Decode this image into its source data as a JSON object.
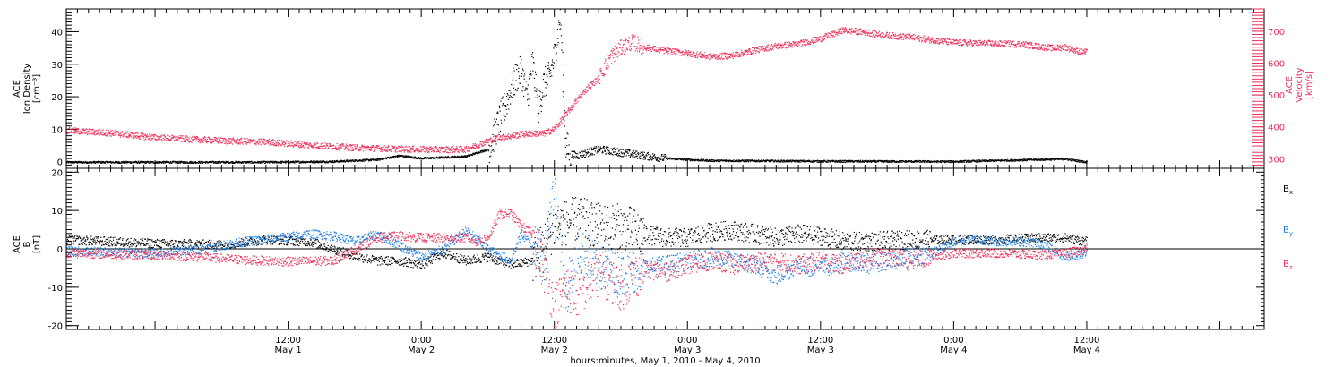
{
  "figure": {
    "xlabel": "hours:minutes, May  1, 2010 - May  4, 2010",
    "x_range_hours": [
      -8,
      100
    ],
    "x_ticks": [
      {
        "hour": 12,
        "time": "12:00",
        "date": "May 1"
      },
      {
        "hour": 24,
        "time": "0:00",
        "date": "May 2"
      },
      {
        "hour": 36,
        "time": "12:00",
        "date": "May 2"
      },
      {
        "hour": 48,
        "time": "0:00",
        "date": "May 3"
      },
      {
        "hour": 60,
        "time": "12:00",
        "date": "May 3"
      },
      {
        "hour": 72,
        "time": "0:00",
        "date": "May 4"
      },
      {
        "hour": 84,
        "time": "12:00",
        "date": "May 4"
      }
    ],
    "colors": {
      "black": "#000000",
      "red": "#e8305a",
      "blue": "#1e7fe0",
      "pink_axis": "#e8305a"
    }
  },
  "chart_data": [
    {
      "type": "scatter",
      "title": "",
      "ylabel_lines": [
        "ACE",
        "Ion Density"
      ],
      "yunit": "[cm⁻³]",
      "ylim": [
        -2,
        47
      ],
      "yticks": [
        0,
        10,
        20,
        30,
        40
      ],
      "y2label_lines": [
        "ACE",
        "Velocity"
      ],
      "y2unit": "[km/s]",
      "y2lim": [
        270,
        770
      ],
      "y2ticks": [
        300,
        400,
        500,
        600,
        700
      ],
      "series": [
        {
          "name": "",
          "axis": "left",
          "color": "#000000",
          "points": [
            [
              -8,
              0
            ],
            [
              10,
              0
            ],
            [
              16,
              0.2
            ],
            [
              20,
              0.8
            ],
            [
              22,
              2
            ],
            [
              24,
              1.2
            ],
            [
              26,
              1.5
            ],
            [
              28,
              1.8
            ],
            [
              30,
              4
            ],
            [
              30.5,
              8
            ],
            [
              31,
              13
            ],
            [
              31.5,
              17
            ],
            [
              32,
              22
            ],
            [
              32.5,
              26
            ],
            [
              33,
              28
            ],
            [
              33.5,
              20
            ],
            [
              34,
              31
            ],
            [
              34.5,
              16
            ],
            [
              35,
              24
            ],
            [
              35.5,
              26
            ],
            [
              36,
              33
            ],
            [
              36.5,
              45
            ],
            [
              37,
              5
            ],
            [
              37.5,
              2.5
            ],
            [
              38,
              2
            ],
            [
              40,
              4
            ],
            [
              42,
              3
            ],
            [
              44,
              2
            ],
            [
              46,
              1.2
            ],
            [
              48,
              0.8
            ],
            [
              50,
              0.5
            ],
            [
              60,
              0.3
            ],
            [
              72,
              0.2
            ],
            [
              82,
              1
            ],
            [
              84,
              0
            ]
          ]
        },
        {
          "name": "",
          "axis": "right",
          "color": "#e8305a",
          "points": [
            [
              -8,
              390
            ],
            [
              -4,
              382
            ],
            [
              0,
              368
            ],
            [
              6,
              358
            ],
            [
              10,
              354
            ],
            [
              14,
              344
            ],
            [
              18,
              336
            ],
            [
              22,
              332
            ],
            [
              26,
              330
            ],
            [
              28,
              331
            ],
            [
              30,
              357
            ],
            [
              31,
              370
            ],
            [
              32,
              372
            ],
            [
              33,
              378
            ],
            [
              34,
              381
            ],
            [
              35,
              380
            ],
            [
              36,
              395
            ],
            [
              37,
              440
            ],
            [
              38,
              485
            ],
            [
              39,
              525
            ],
            [
              40,
              555
            ],
            [
              41,
              620
            ],
            [
              42,
              650
            ],
            [
              43,
              668
            ],
            [
              44,
              652
            ],
            [
              46,
              640
            ],
            [
              48,
              632
            ],
            [
              50,
              622
            ],
            [
              52,
              625
            ],
            [
              54,
              642
            ],
            [
              56,
              655
            ],
            [
              58,
              662
            ],
            [
              60,
              678
            ],
            [
              62,
              705
            ],
            [
              64,
              698
            ],
            [
              66,
              688
            ],
            [
              68,
              683
            ],
            [
              70,
              674
            ],
            [
              72,
              666
            ],
            [
              74,
              664
            ],
            [
              76,
              662
            ],
            [
              78,
              661
            ],
            [
              80,
              652
            ],
            [
              81,
              648
            ],
            [
              82,
              652
            ],
            [
              83,
              640
            ],
            [
              84,
              635
            ]
          ]
        }
      ]
    },
    {
      "type": "scatter",
      "title": "",
      "ylabel_lines": [
        "ACE",
        "B"
      ],
      "yunit": "[nT]",
      "ylim": [
        -21,
        21
      ],
      "yticks": [
        -20,
        -10,
        0,
        10,
        20
      ],
      "series": [
        {
          "name": "Bx",
          "label": "B",
          "label_sub": "x",
          "color": "#000000",
          "points": [
            [
              -8,
              2.5
            ],
            [
              0,
              1.5
            ],
            [
              6,
              1.2
            ],
            [
              10,
              2.5
            ],
            [
              14,
              2
            ],
            [
              18,
              -1.8
            ],
            [
              20,
              -3
            ],
            [
              22,
              -3
            ],
            [
              24,
              -4
            ],
            [
              26,
              -1
            ],
            [
              28,
              -3
            ],
            [
              30,
              -2
            ],
            [
              32,
              -4
            ],
            [
              34,
              -3
            ],
            [
              36,
              6
            ],
            [
              38,
              8
            ],
            [
              40,
              6
            ],
            [
              42,
              6
            ],
            [
              44,
              4
            ],
            [
              46,
              3
            ],
            [
              48,
              3
            ],
            [
              50,
              4.5
            ],
            [
              52,
              5
            ],
            [
              56,
              3
            ],
            [
              58,
              4
            ],
            [
              60,
              3.5
            ],
            [
              62,
              2
            ],
            [
              64,
              2
            ],
            [
              68,
              2.5
            ],
            [
              72,
              2.5
            ],
            [
              76,
              2.5
            ],
            [
              78,
              2.8
            ],
            [
              80,
              3
            ],
            [
              82,
              3
            ],
            [
              84,
              2
            ]
          ]
        },
        {
          "name": "By",
          "label": "B",
          "label_sub": "y",
          "color": "#1e7fe0",
          "points": [
            [
              -8,
              -0.5
            ],
            [
              0,
              -1
            ],
            [
              4,
              0
            ],
            [
              8,
              2
            ],
            [
              10,
              2.5
            ],
            [
              14,
              4
            ],
            [
              16,
              3.5
            ],
            [
              18,
              2
            ],
            [
              20,
              4
            ],
            [
              22,
              1
            ],
            [
              24,
              -2
            ],
            [
              26,
              0
            ],
            [
              28,
              5
            ],
            [
              30,
              0
            ],
            [
              32,
              -3
            ],
            [
              33,
              4
            ],
            [
              34,
              1
            ],
            [
              35,
              -3
            ],
            [
              36,
              18
            ],
            [
              37,
              -12
            ],
            [
              38,
              0
            ],
            [
              40,
              -5
            ],
            [
              42,
              -6
            ],
            [
              44,
              -5
            ],
            [
              46,
              -4
            ],
            [
              48,
              -3
            ],
            [
              50,
              -2
            ],
            [
              52,
              -3
            ],
            [
              54,
              -4
            ],
            [
              56,
              -7
            ],
            [
              58,
              -4
            ],
            [
              60,
              -5
            ],
            [
              62,
              -3
            ],
            [
              64,
              -4
            ],
            [
              66,
              -3
            ],
            [
              68,
              -2
            ],
            [
              70,
              -1
            ],
            [
              72,
              2
            ],
            [
              74,
              2.5
            ],
            [
              76,
              2
            ],
            [
              78,
              2
            ],
            [
              80,
              1.5
            ],
            [
              82,
              -2
            ],
            [
              84,
              -1
            ]
          ]
        },
        {
          "name": "Bz",
          "label": "B",
          "label_sub": "z",
          "color": "#e8305a",
          "points": [
            [
              -8,
              -1
            ],
            [
              0,
              -1.5
            ],
            [
              4,
              -2
            ],
            [
              8,
              -2.8
            ],
            [
              12,
              -3.2
            ],
            [
              16,
              -3
            ],
            [
              20,
              3
            ],
            [
              22,
              3.5
            ],
            [
              24,
              3
            ],
            [
              26,
              3
            ],
            [
              28,
              3
            ],
            [
              29,
              2
            ],
            [
              30,
              3
            ],
            [
              31,
              9
            ],
            [
              32,
              9.5
            ],
            [
              33,
              6
            ],
            [
              34,
              4
            ],
            [
              35,
              -5
            ],
            [
              36,
              -15
            ],
            [
              37,
              -10
            ],
            [
              38,
              -12
            ],
            [
              40,
              -6
            ],
            [
              42,
              -10
            ],
            [
              44,
              -5
            ],
            [
              46,
              -6
            ],
            [
              48,
              -4
            ],
            [
              50,
              -3
            ],
            [
              52,
              -4
            ],
            [
              56,
              -3
            ],
            [
              58,
              -4
            ],
            [
              60,
              -3
            ],
            [
              62,
              -4
            ],
            [
              64,
              -2
            ],
            [
              66,
              -2
            ],
            [
              68,
              -3
            ],
            [
              72,
              -1
            ],
            [
              76,
              -1
            ],
            [
              80,
              -1.5
            ],
            [
              82,
              -1
            ],
            [
              84,
              0
            ]
          ]
        }
      ]
    }
  ]
}
